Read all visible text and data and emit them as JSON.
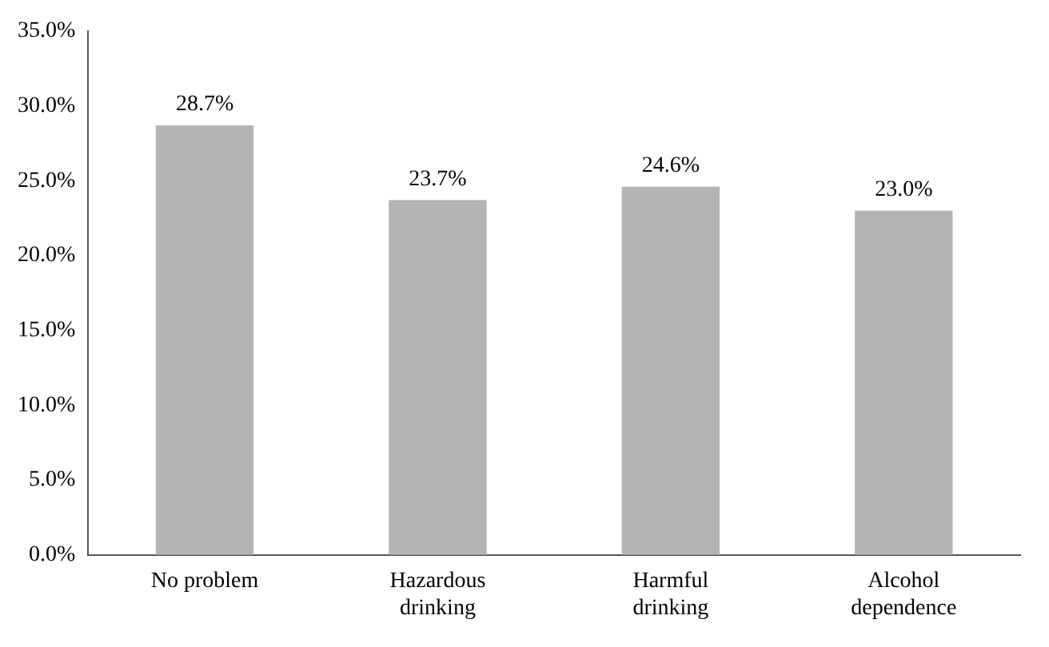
{
  "chart_data": {
    "type": "bar",
    "categories": [
      "No problem",
      "Hazardous drinking",
      "Harmful drinking",
      "Alcohol dependence"
    ],
    "values": [
      28.7,
      23.7,
      24.6,
      23.0
    ],
    "value_labels": [
      "28.7%",
      "23.7%",
      "24.6%",
      "23.0%"
    ],
    "color": "#b4b4b4",
    "ylim": [
      0,
      35
    ],
    "yticks": [
      {
        "value": 0,
        "label": "0.0%"
      },
      {
        "value": 5,
        "label": "5.0%"
      },
      {
        "value": 10,
        "label": "10.0%"
      },
      {
        "value": 15,
        "label": "15.0%"
      },
      {
        "value": 20,
        "label": "20.0%"
      },
      {
        "value": 25,
        "label": "25.0%"
      },
      {
        "value": 30,
        "label": "30.0%"
      },
      {
        "value": 35,
        "label": "35.0%"
      }
    ],
    "grid": false,
    "legend": false
  }
}
